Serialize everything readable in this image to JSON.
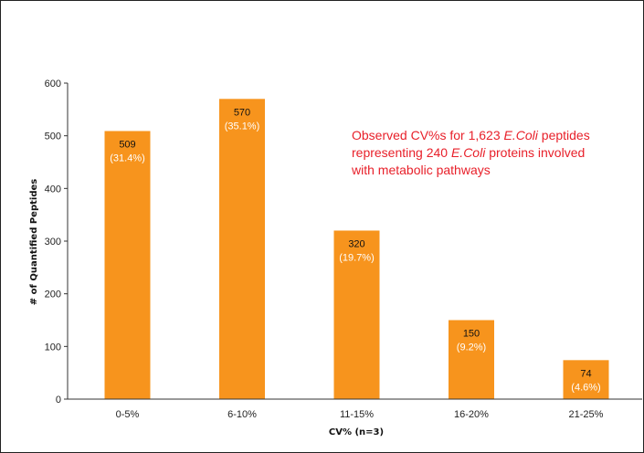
{
  "chart_data": {
    "type": "bar",
    "categories": [
      "0-5%",
      "6-10%",
      "11-15%",
      "16-20%",
      "21-25%"
    ],
    "values": [
      509,
      570,
      320,
      150,
      74
    ],
    "percent_labels": [
      "(31.4%)",
      "(35.1%)",
      "(19.7%)",
      "(9.2%)",
      "(4.6%)"
    ],
    "title": "",
    "xlabel": "CV% (n=3)",
    "ylabel": "# of Quantified Peptides",
    "ylim": [
      0,
      600
    ],
    "yticks": [
      0,
      100,
      200,
      300,
      400,
      500,
      600
    ],
    "grid": false,
    "bar_color": "#f7941d",
    "annotation": {
      "color": "#e8202a",
      "line1_a": "Observed CV%s for 1,623 ",
      "line1_italic": "E.Coli",
      "line1_b": " peptides",
      "line2_a": "representing 240 ",
      "line2_italic": "E.Coli",
      "line2_b": " proteins involved",
      "line3": "with metabolic pathways"
    }
  }
}
